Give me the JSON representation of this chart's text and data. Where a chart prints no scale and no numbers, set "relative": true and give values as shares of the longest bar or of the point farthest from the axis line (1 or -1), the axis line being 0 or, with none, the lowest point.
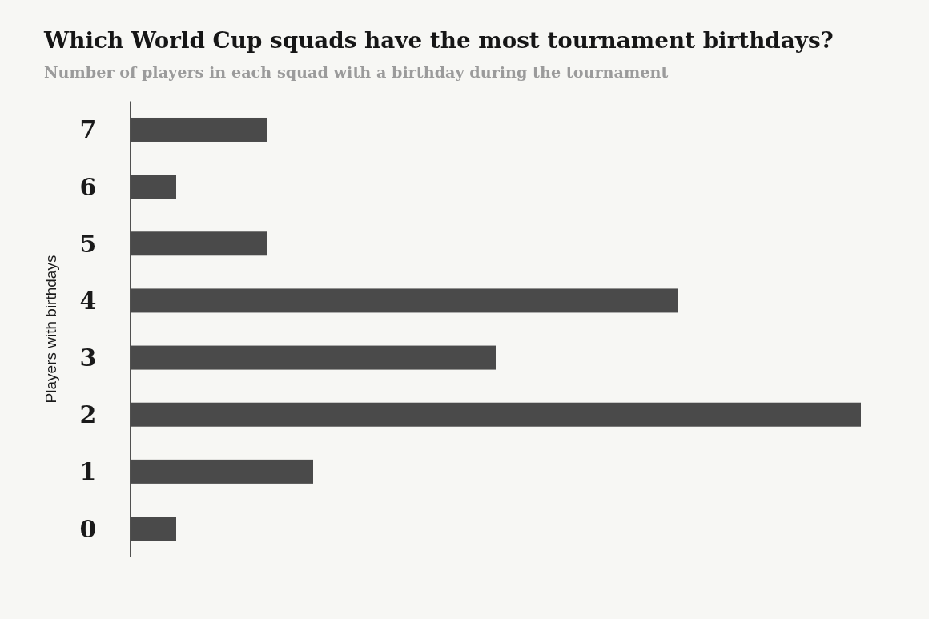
{
  "chart_data": {
    "type": "bar",
    "orientation": "horizontal",
    "relative": true,
    "title": "Which World Cup squads have the most tournament birthdays?",
    "subtitle": "Number of players in each squad with a birthday during the tournament",
    "ylabel": "Players with birthdays",
    "categories": [
      "7",
      "6",
      "5",
      "4",
      "3",
      "2",
      "1",
      "0"
    ],
    "values": [
      0.1875,
      0.0625,
      0.1875,
      0.75,
      0.5,
      1,
      0.25,
      0.0625
    ],
    "color": "#4a4a4a"
  }
}
